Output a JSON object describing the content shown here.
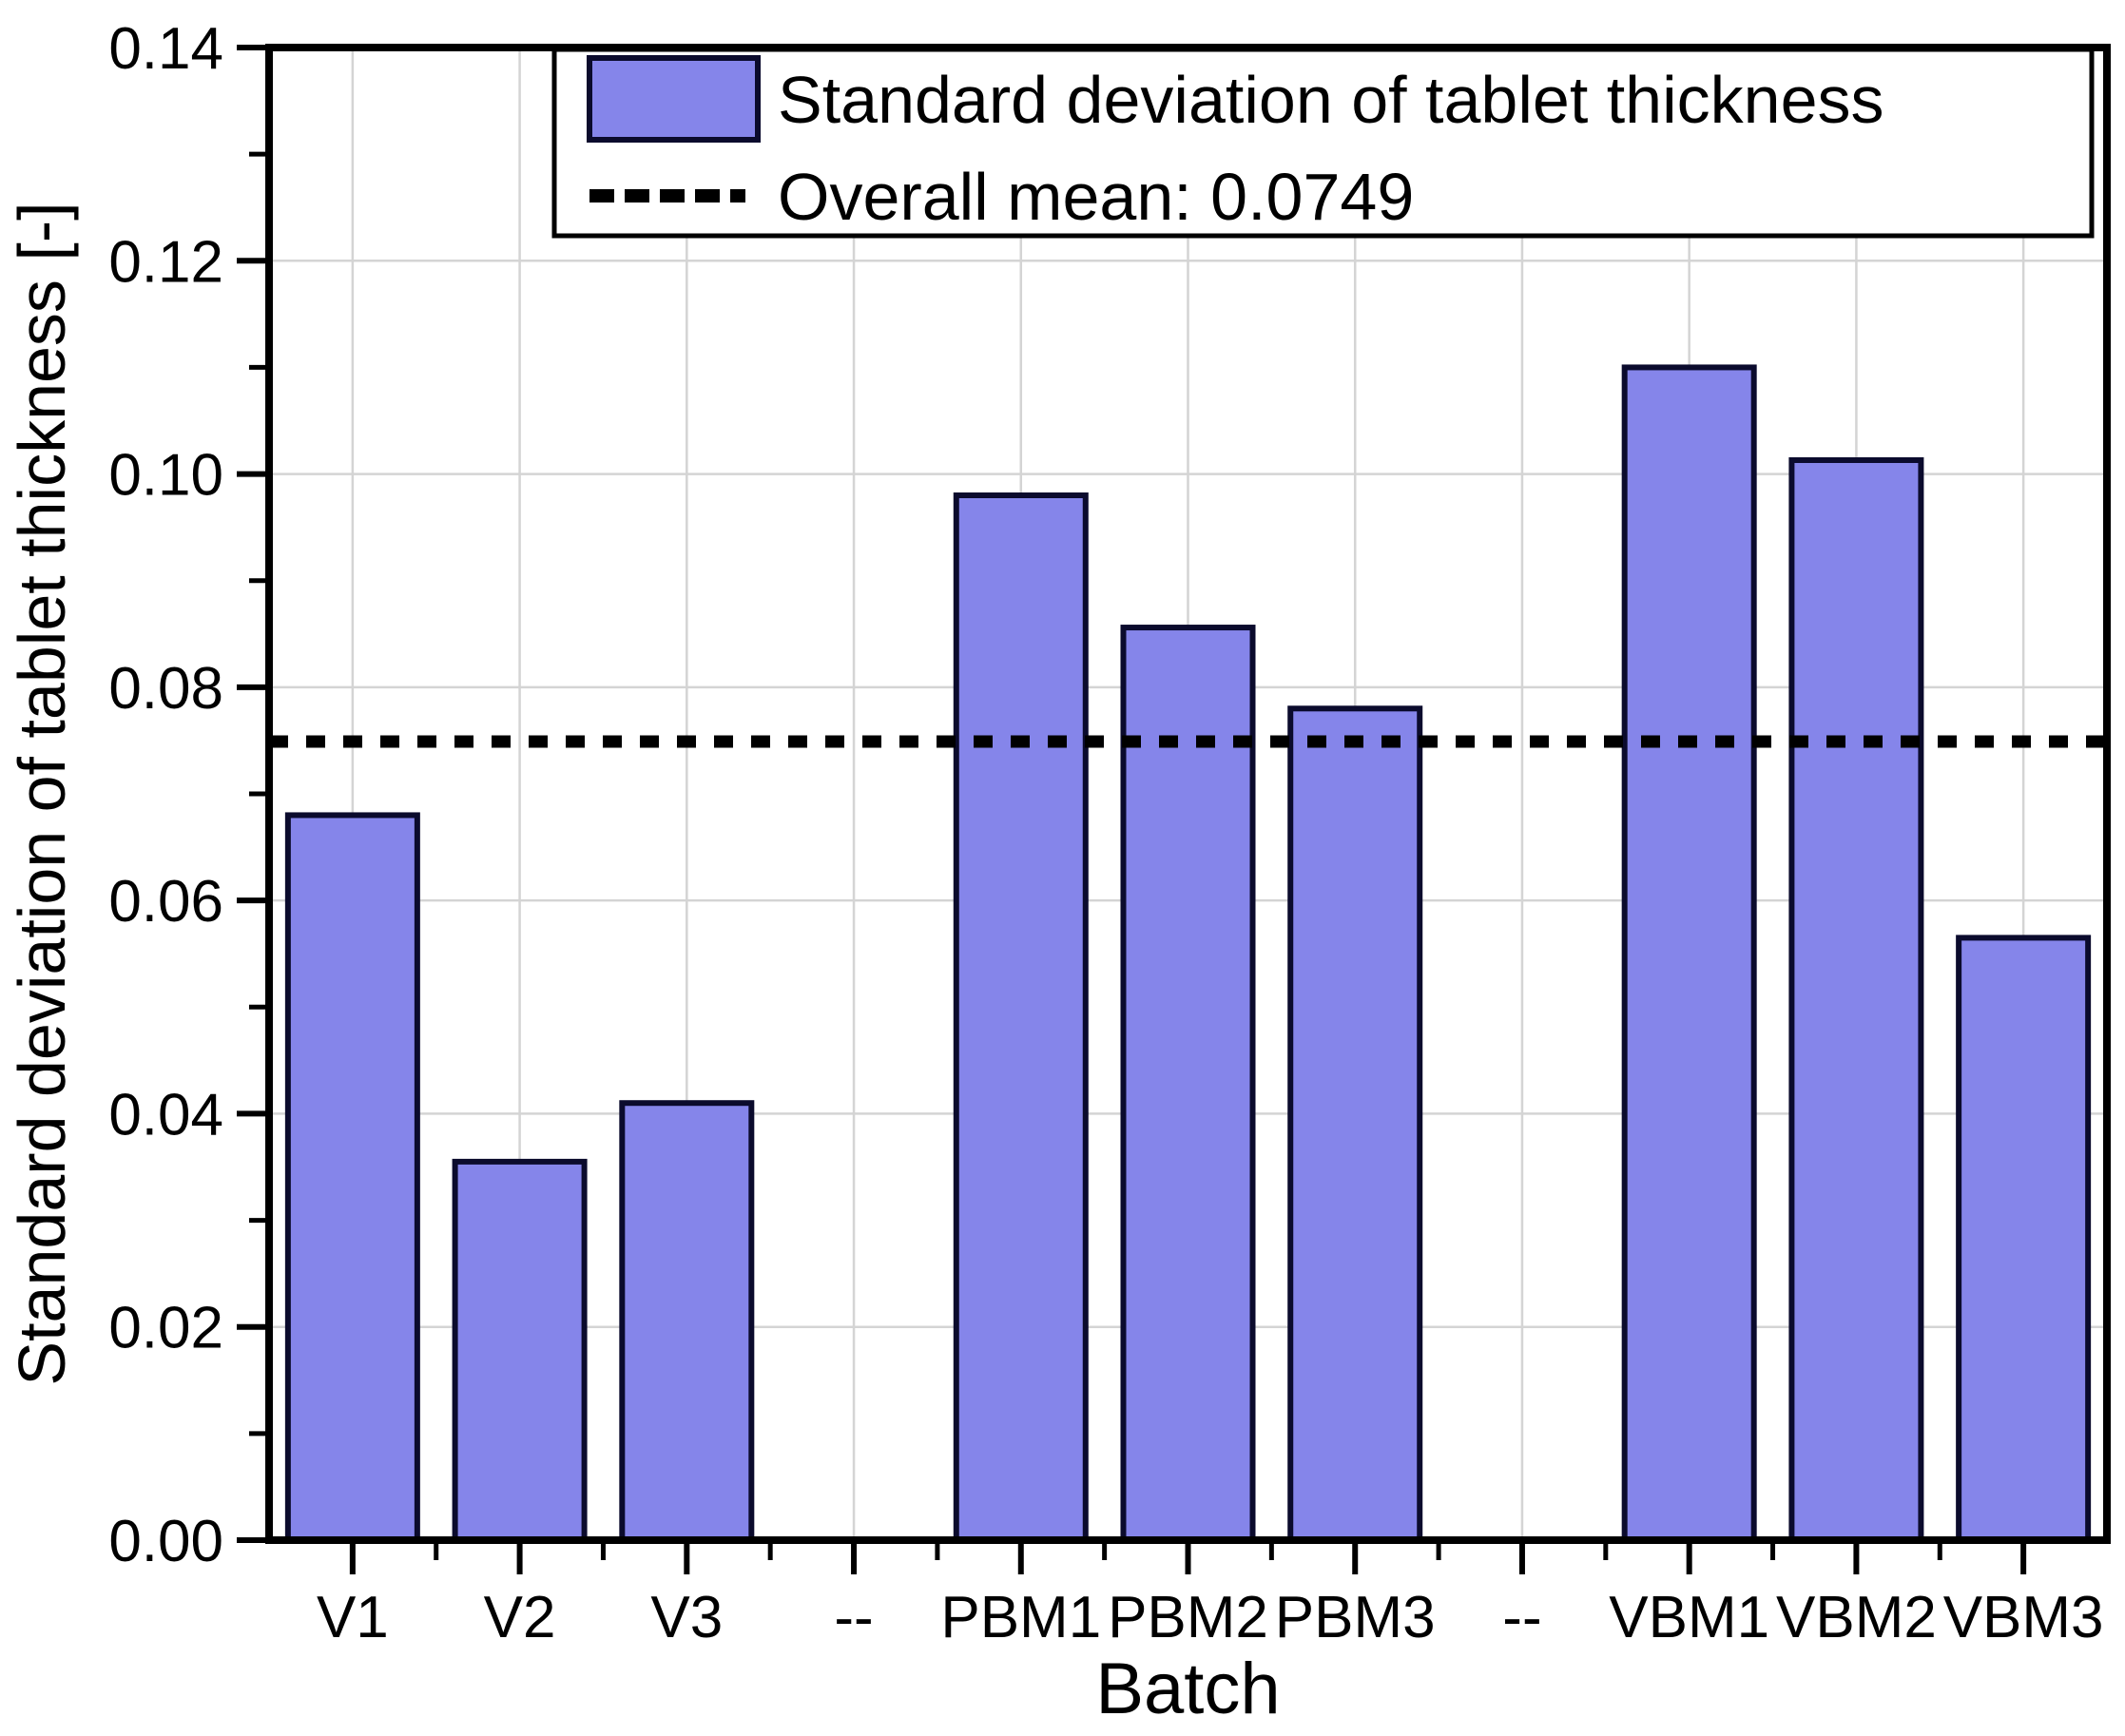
{
  "figure": {
    "background": "#ffffff"
  },
  "chart_data": {
    "type": "bar",
    "xlabel": "Batch",
    "ylabel": "Standard deviation of tablet thickness [-]",
    "categories": [
      "V1",
      "V2",
      "V3",
      "--",
      "PBM1",
      "PBM2",
      "PBM3",
      "--",
      "VBM1",
      "VBM2",
      "VBM3"
    ],
    "values": [
      0.068,
      0.0355,
      0.041,
      null,
      0.098,
      0.0856,
      0.078,
      null,
      0.11,
      0.1013,
      0.0565
    ],
    "series_name": "Standard deviation of tablet thickness",
    "overall_mean": 0.0749,
    "ylim": [
      0,
      0.14
    ],
    "ytick_labels": [
      "0.00",
      "0.02",
      "0.04",
      "0.06",
      "0.08",
      "0.10",
      "0.12",
      "0.14"
    ],
    "ytick_step": 0.02,
    "minor_ytick_step": 0.01,
    "grid": true,
    "legend_position": "top-inside",
    "legend": {
      "bar_label": "Standard deviation of tablet thickness",
      "mean_label": "Overall mean: 0.0749"
    },
    "mean_line_style": "dotted"
  },
  "colors": {
    "bar_fill": "#8585EA",
    "bar_edge": "#0B0B2D",
    "grid": "#D4D4D4",
    "axis": "#000000",
    "mean_line": "#000000",
    "legend_bg": "#FFFFFF",
    "legend_border": "#000000",
    "text": "#000000"
  }
}
